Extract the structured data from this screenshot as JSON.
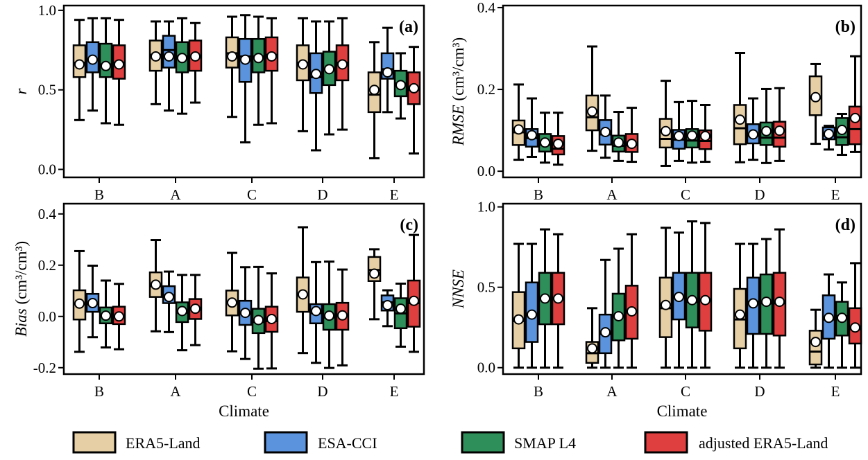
{
  "colors": {
    "ERA5-Land": "#e6cfa5",
    "ESA-CCI": "#5b94dd",
    "SMAP L4": "#2f8f5a",
    "adjusted ERA5-Land": "#e03f3f"
  },
  "legend": [
    "ERA5-Land",
    "ESA-CCI",
    "SMAP L4",
    "adjusted ERA5-Land"
  ],
  "chart_data": [
    {
      "type": "box",
      "panel_label": "(a)",
      "ylabel_italic": "r",
      "ylabel_unit": "",
      "xlabel": "",
      "categories": [
        "B",
        "A",
        "C",
        "D",
        "E"
      ],
      "ylim": [
        -0.05,
        1.03
      ],
      "yticks": [
        0.0,
        0.5,
        1.0
      ],
      "ytick_labels": [
        "0.0",
        "0.5",
        "1.0"
      ],
      "series": [
        {
          "name": "ERA5-Land",
          "boxes": [
            [
              0.31,
              0.58,
              0.67,
              0.78,
              0.94
            ],
            [
              0.41,
              0.62,
              0.72,
              0.81,
              0.93
            ],
            [
              0.33,
              0.64,
              0.73,
              0.83,
              0.96
            ],
            [
              0.24,
              0.56,
              0.67,
              0.78,
              0.95
            ],
            [
              0.07,
              0.36,
              0.47,
              0.61,
              0.8
            ]
          ],
          "means": [
            0.66,
            0.71,
            0.71,
            0.66,
            0.5
          ]
        },
        {
          "name": "ESA-CCI",
          "boxes": [
            [
              0.37,
              0.61,
              0.69,
              0.8,
              0.95
            ],
            [
              0.37,
              0.64,
              0.75,
              0.84,
              0.93
            ],
            [
              0.17,
              0.55,
              0.71,
              0.82,
              0.97
            ],
            [
              0.12,
              0.48,
              0.58,
              0.73,
              0.93
            ],
            [
              0.36,
              0.57,
              0.63,
              0.73,
              0.89
            ]
          ],
          "means": [
            0.69,
            0.71,
            0.69,
            0.6,
            0.61
          ]
        },
        {
          "name": "SMAP L4",
          "boxes": [
            [
              0.29,
              0.58,
              0.66,
              0.79,
              0.95
            ],
            [
              0.35,
              0.61,
              0.71,
              0.8,
              0.95
            ],
            [
              0.28,
              0.61,
              0.71,
              0.82,
              0.96
            ],
            [
              0.22,
              0.53,
              0.63,
              0.74,
              0.93
            ],
            [
              0.32,
              0.46,
              0.54,
              0.62,
              0.73
            ]
          ],
          "means": [
            0.65,
            0.7,
            0.7,
            0.63,
            0.53
          ]
        },
        {
          "name": "adjusted ERA5-Land",
          "boxes": [
            [
              0.28,
              0.57,
              0.67,
              0.78,
              0.94
            ],
            [
              0.42,
              0.62,
              0.71,
              0.81,
              0.92
            ],
            [
              0.29,
              0.62,
              0.72,
              0.83,
              0.95
            ],
            [
              0.25,
              0.56,
              0.67,
              0.78,
              0.95
            ],
            [
              0.1,
              0.41,
              0.5,
              0.61,
              0.77
            ]
          ],
          "means": [
            0.66,
            0.71,
            0.71,
            0.66,
            0.51
          ]
        }
      ]
    },
    {
      "type": "box",
      "panel_label": "(b)",
      "ylabel_italic": "RMSE",
      "ylabel_unit": " (cm³/cm³)",
      "xlabel": "",
      "categories": [
        "B",
        "A",
        "C",
        "D",
        "E"
      ],
      "ylim": [
        -0.015,
        0.405
      ],
      "yticks": [
        0.0,
        0.2,
        0.4
      ],
      "ytick_labels": [
        "0.0",
        "0.2",
        "0.4"
      ],
      "series": [
        {
          "name": "ERA5-Land",
          "boxes": [
            [
              0.028,
              0.064,
              0.095,
              0.124,
              0.212
            ],
            [
              0.05,
              0.1,
              0.132,
              0.185,
              0.305
            ],
            [
              0.013,
              0.058,
              0.079,
              0.128,
              0.221
            ],
            [
              0.022,
              0.066,
              0.105,
              0.162,
              0.289
            ],
            [
              0.067,
              0.137,
              0.178,
              0.232,
              0.262
            ]
          ],
          "means": [
            0.102,
            0.146,
            0.098,
            0.126,
            0.181
          ]
        },
        {
          "name": "ESA-CCI",
          "boxes": [
            [
              0.035,
              0.06,
              0.081,
              0.103,
              0.178
            ],
            [
              0.033,
              0.065,
              0.09,
              0.125,
              0.185
            ],
            [
              0.025,
              0.055,
              0.077,
              0.101,
              0.169
            ],
            [
              0.028,
              0.068,
              0.087,
              0.115,
              0.178
            ],
            [
              0.053,
              0.078,
              0.087,
              0.107,
              0.111
            ]
          ],
          "means": [
            0.088,
            0.096,
            0.086,
            0.09,
            0.091
          ]
        },
        {
          "name": "SMAP L4",
          "boxes": [
            [
              0.021,
              0.048,
              0.065,
              0.091,
              0.143
            ],
            [
              0.025,
              0.048,
              0.062,
              0.087,
              0.145
            ],
            [
              0.021,
              0.058,
              0.075,
              0.103,
              0.172
            ],
            [
              0.02,
              0.064,
              0.082,
              0.119,
              0.201
            ],
            [
              0.04,
              0.064,
              0.083,
              0.13,
              0.14
            ]
          ],
          "means": [
            0.07,
            0.07,
            0.087,
            0.098,
            0.101
          ]
        },
        {
          "name": "adjusted ERA5-Land",
          "boxes": [
            [
              0.016,
              0.041,
              0.055,
              0.086,
              0.143
            ],
            [
              0.023,
              0.047,
              0.064,
              0.091,
              0.155
            ],
            [
              0.023,
              0.054,
              0.074,
              0.1,
              0.162
            ],
            [
              0.025,
              0.06,
              0.082,
              0.121,
              0.203
            ],
            [
              0.047,
              0.066,
              0.103,
              0.158,
              0.281
            ]
          ],
          "means": [
            0.067,
            0.067,
            0.086,
            0.099,
            0.13
          ]
        }
      ]
    },
    {
      "type": "box",
      "panel_label": "(c)",
      "ylabel_italic": "Bias",
      "ylabel_unit": " (cm³/cm³)",
      "xlabel": "Climate",
      "categories": [
        "B",
        "A",
        "C",
        "D",
        "E"
      ],
      "ylim": [
        -0.225,
        0.44
      ],
      "yticks": [
        -0.2,
        0.0,
        0.2,
        0.4
      ],
      "ytick_labels": [
        "-0.2",
        "0.0",
        "0.2",
        "0.4"
      ],
      "series": [
        {
          "name": "ERA5-Land",
          "boxes": [
            [
              -0.138,
              -0.012,
              0.048,
              0.102,
              0.255
            ],
            [
              -0.058,
              0.076,
              0.118,
              0.172,
              0.298
            ],
            [
              -0.136,
              0.004,
              0.058,
              0.101,
              0.248
            ],
            [
              -0.143,
              0.018,
              0.085,
              0.152,
              0.348
            ],
            [
              -0.011,
              0.138,
              0.181,
              0.232,
              0.262
            ]
          ],
          "means": [
            0.05,
            0.124,
            0.054,
            0.086,
            0.167
          ]
        },
        {
          "name": "ESA-CCI",
          "boxes": [
            [
              -0.081,
              0.018,
              0.048,
              0.088,
              0.198
            ],
            [
              -0.061,
              0.052,
              0.082,
              0.118,
              0.175
            ],
            [
              -0.166,
              -0.033,
              0.011,
              0.061,
              0.192
            ],
            [
              -0.181,
              -0.027,
              0.013,
              0.048,
              0.212
            ],
            [
              -0.038,
              0.023,
              0.055,
              0.082,
              0.102
            ]
          ],
          "means": [
            0.052,
            0.076,
            0.014,
            0.021,
            0.044
          ]
        },
        {
          "name": "SMAP L4",
          "boxes": [
            [
              -0.121,
              -0.027,
              0.001,
              0.035,
              0.14
            ],
            [
              -0.132,
              -0.022,
              0.015,
              0.055,
              0.162
            ],
            [
              -0.204,
              -0.065,
              -0.022,
              0.03,
              0.193
            ],
            [
              -0.201,
              -0.052,
              -0.004,
              0.048,
              0.214
            ],
            [
              -0.118,
              -0.046,
              0.012,
              0.071,
              0.128
            ]
          ],
          "means": [
            0.003,
            0.021,
            -0.014,
            0.003,
            0.03
          ]
        },
        {
          "name": "adjusted ERA5-Land",
          "boxes": [
            [
              -0.128,
              -0.03,
              -0.002,
              0.038,
              0.127
            ],
            [
              -0.112,
              -0.01,
              0.032,
              0.068,
              0.162
            ],
            [
              -0.203,
              -0.06,
              -0.018,
              0.038,
              0.168
            ],
            [
              -0.191,
              -0.052,
              0.003,
              0.053,
              0.183
            ],
            [
              -0.138,
              -0.04,
              0.052,
              0.14,
              0.318
            ]
          ],
          "means": [
            0.0,
            0.03,
            -0.01,
            0.004,
            0.061
          ]
        }
      ]
    },
    {
      "type": "box",
      "panel_label": "(d)",
      "ylabel_italic": "NNSE",
      "ylabel_unit": "",
      "xlabel": "Climate",
      "categories": [
        "B",
        "A",
        "C",
        "D",
        "E"
      ],
      "ylim": [
        -0.04,
        1.02
      ],
      "yticks": [
        0.0,
        0.5,
        1.0
      ],
      "ytick_labels": [
        "0.0",
        "0.5",
        "1.0"
      ],
      "series": [
        {
          "name": "ERA5-Land",
          "boxes": [
            [
              0.0,
              0.12,
              0.29,
              0.47,
              0.77
            ],
            [
              0.0,
              0.03,
              0.09,
              0.16,
              0.37
            ],
            [
              0.0,
              0.19,
              0.37,
              0.56,
              0.87
            ],
            [
              0.0,
              0.12,
              0.3,
              0.49,
              0.77
            ],
            [
              0.0,
              0.02,
              0.1,
              0.23,
              0.36
            ]
          ],
          "means": [
            0.3,
            0.12,
            0.39,
            0.33,
            0.16
          ]
        },
        {
          "name": "ESA-CCI",
          "boxes": [
            [
              0.0,
              0.16,
              0.33,
              0.53,
              0.77
            ],
            [
              0.0,
              0.09,
              0.21,
              0.33,
              0.67
            ],
            [
              0.0,
              0.3,
              0.44,
              0.59,
              0.84
            ],
            [
              0.0,
              0.21,
              0.41,
              0.56,
              0.77
            ],
            [
              0.0,
              0.18,
              0.3,
              0.45,
              0.58
            ]
          ],
          "means": [
            0.33,
            0.22,
            0.44,
            0.4,
            0.31
          ]
        },
        {
          "name": "SMAP L4",
          "boxes": [
            [
              0.0,
              0.27,
              0.43,
              0.59,
              0.86
            ],
            [
              0.0,
              0.17,
              0.32,
              0.46,
              0.74
            ],
            [
              0.0,
              0.25,
              0.41,
              0.59,
              0.91
            ],
            [
              0.0,
              0.21,
              0.4,
              0.58,
              0.8
            ],
            [
              0.0,
              0.2,
              0.32,
              0.41,
              0.53
            ]
          ],
          "means": [
            0.43,
            0.32,
            0.42,
            0.41,
            0.31
          ]
        },
        {
          "name": "adjusted ERA5-Land",
          "boxes": [
            [
              0.0,
              0.27,
              0.43,
              0.59,
              0.83
            ],
            [
              0.0,
              0.18,
              0.35,
              0.51,
              0.83
            ],
            [
              0.0,
              0.23,
              0.42,
              0.59,
              0.9
            ],
            [
              0.0,
              0.2,
              0.4,
              0.59,
              0.86
            ],
            [
              0.0,
              0.15,
              0.24,
              0.37,
              0.65
            ]
          ],
          "means": [
            0.43,
            0.35,
            0.42,
            0.41,
            0.25
          ]
        }
      ]
    }
  ]
}
